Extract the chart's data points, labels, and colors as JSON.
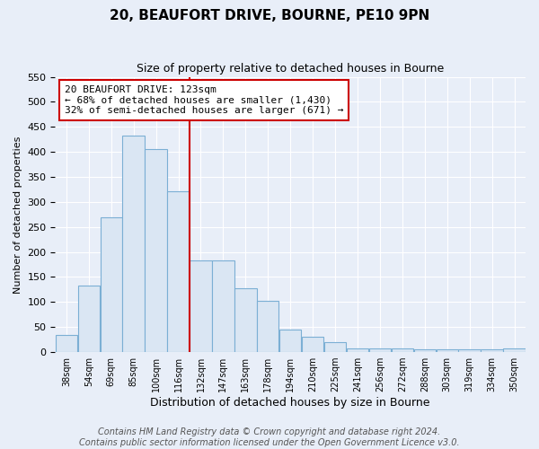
{
  "title": "20, BEAUFORT DRIVE, BOURNE, PE10 9PN",
  "subtitle": "Size of property relative to detached houses in Bourne",
  "xlabel": "Distribution of detached houses by size in Bourne",
  "ylabel": "Number of detached properties",
  "categories": [
    "38sqm",
    "54sqm",
    "69sqm",
    "85sqm",
    "100sqm",
    "116sqm",
    "132sqm",
    "147sqm",
    "163sqm",
    "178sqm",
    "194sqm",
    "210sqm",
    "225sqm",
    "241sqm",
    "256sqm",
    "272sqm",
    "288sqm",
    "303sqm",
    "319sqm",
    "334sqm",
    "350sqm"
  ],
  "bar_heights": [
    35,
    133,
    270,
    432,
    405,
    322,
    183,
    183,
    127,
    103,
    45,
    30,
    20,
    8,
    8,
    8,
    5,
    5,
    5,
    5,
    8
  ],
  "bar_color": "#dae6f3",
  "bar_edge_color": "#7bafd4",
  "ylim": [
    0,
    550
  ],
  "yticks": [
    0,
    50,
    100,
    150,
    200,
    250,
    300,
    350,
    400,
    450,
    500,
    550
  ],
  "vline_index": 6,
  "vline_color": "#cc0000",
  "annotation_title": "20 BEAUFORT DRIVE: 123sqm",
  "annotation_line1": "← 68% of detached houses are smaller (1,430)",
  "annotation_line2": "32% of semi-detached houses are larger (671) →",
  "annotation_box_color": "#cc0000",
  "footer_line1": "Contains HM Land Registry data © Crown copyright and database right 2024.",
  "footer_line2": "Contains public sector information licensed under the Open Government Licence v3.0.",
  "bg_color": "#e8eef8",
  "grid_color": "#ffffff",
  "title_fontsize": 11,
  "subtitle_fontsize": 9,
  "annotation_fontsize": 8,
  "footer_fontsize": 7,
  "tick_fontsize": 7,
  "ylabel_fontsize": 8,
  "xlabel_fontsize": 9
}
